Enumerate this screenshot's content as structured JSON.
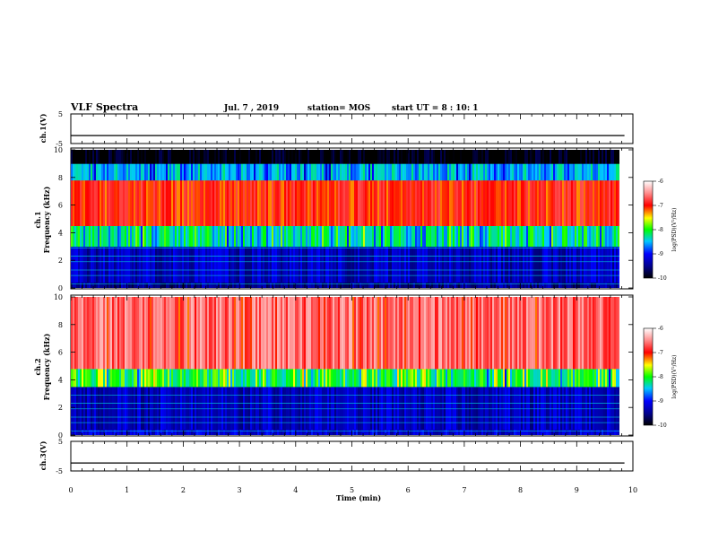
{
  "header": {
    "title": "VLF Spectra",
    "date": "Jul. 7 , 2019",
    "station": "station= MOS",
    "start": "start UT = 8 : 10: 1"
  },
  "chart_data": [
    {
      "type": "line",
      "ylabel": "ch.1(V)",
      "xlim": [
        0,
        10
      ],
      "ylim": [
        -5,
        5
      ],
      "yticks": [
        "5",
        "-5"
      ],
      "series": [
        {
          "values_note_free": true,
          "x": [
            0,
            9.85
          ],
          "y": [
            -2.3,
            -2.3
          ]
        }
      ]
    },
    {
      "type": "heatmap",
      "ylabel": "ch.1\nFrequency (kHz)",
      "xlim": [
        0,
        9.85
      ],
      "ylim": [
        0,
        10
      ],
      "yticks": [
        "0",
        "2",
        "4",
        "6",
        "8",
        "10"
      ],
      "bands": [
        {
          "f": [
            0,
            0.4
          ],
          "level": -9.5
        },
        {
          "f": [
            0.4,
            3.0
          ],
          "level": -9.3
        },
        {
          "f": [
            3.0,
            4.5
          ],
          "level": -8.3
        },
        {
          "f": [
            4.5,
            7.8
          ],
          "level": -7.0
        },
        {
          "f": [
            7.8,
            9.0
          ],
          "level": -8.5
        },
        {
          "f": [
            9.0,
            10
          ],
          "level": -10
        }
      ],
      "colorbar": {
        "label": "log(PSD)(V²/Hz)",
        "range": [
          -10,
          -6
        ],
        "ticks": [
          "-6",
          "-7",
          "-8",
          "-9",
          "-10"
        ]
      }
    },
    {
      "type": "heatmap",
      "ylabel": "ch.2\nFrequency (kHz)",
      "xlim": [
        0,
        9.85
      ],
      "ylim": [
        0,
        10
      ],
      "yticks": [
        "0",
        "2",
        "4",
        "6",
        "8",
        "10"
      ],
      "bands": [
        {
          "f": [
            0,
            0.4
          ],
          "level": -9.2
        },
        {
          "f": [
            0.4,
            3.5
          ],
          "level": -9.3
        },
        {
          "f": [
            3.5,
            4.8
          ],
          "level": -8.0
        },
        {
          "f": [
            4.8,
            10
          ],
          "level": -6.6
        }
      ],
      "colorbar": {
        "label": "log(PSD)(V²/Hz)",
        "range": [
          -10,
          -6
        ],
        "ticks": [
          "-6",
          "-7",
          "-8",
          "-9",
          "-10"
        ]
      }
    },
    {
      "type": "line",
      "ylabel": "ch.3(V)",
      "xlim": [
        0,
        10
      ],
      "ylim": [
        -5,
        5
      ],
      "yticks": [
        "5",
        "-5"
      ],
      "series": [
        {
          "x": [
            0,
            9.85
          ],
          "y": [
            -2.3,
            -2.3
          ]
        }
      ]
    }
  ],
  "xaxis": {
    "label": "Time (min)",
    "ticks": [
      "0",
      "1",
      "2",
      "3",
      "4",
      "5",
      "6",
      "7",
      "8",
      "9",
      "10"
    ]
  }
}
